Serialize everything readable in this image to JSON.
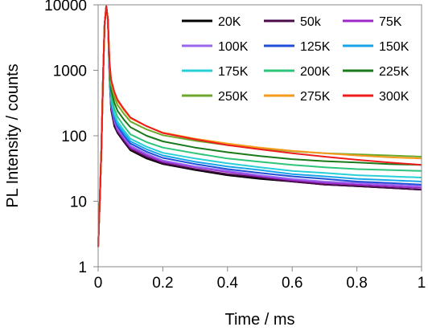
{
  "chart_data": {
    "type": "line",
    "title": "",
    "xlabel": "Time / ms",
    "ylabel": "PL Intensity / counts",
    "xlim": [
      0,
      1
    ],
    "ylim": [
      1,
      10000
    ],
    "yscale": "log",
    "x_ticks": [
      0,
      0.2,
      0.4,
      0.6,
      0.8,
      1
    ],
    "x_tick_labels": [
      "0",
      "0.2",
      "0.4",
      "0.6",
      "0.8",
      "1"
    ],
    "y_ticks": [
      1,
      10,
      100,
      1000,
      10000
    ],
    "y_tick_labels": [
      "1",
      "10",
      "100",
      "1000",
      "10000"
    ],
    "grid": false,
    "legend_placement": "top-right",
    "x": [
      0,
      0.005,
      0.01,
      0.015,
      0.02,
      0.025,
      0.03,
      0.035,
      0.04,
      0.05,
      0.06,
      0.08,
      0.1,
      0.15,
      0.2,
      0.3,
      0.4,
      0.5,
      0.6,
      0.7,
      0.8,
      0.9,
      1.0
    ],
    "series": [
      {
        "name": "20K",
        "color": "#000000",
        "values": [
          2,
          10,
          60,
          700,
          5000,
          9500,
          6000,
          800,
          250,
          140,
          110,
          80,
          60,
          45,
          37,
          30,
          25,
          22,
          20,
          18,
          17,
          16,
          15
        ]
      },
      {
        "name": "50k",
        "color": "#4b0a4b",
        "values": [
          2,
          10,
          60,
          700,
          5000,
          9500,
          6000,
          850,
          260,
          150,
          115,
          82,
          62,
          47,
          38,
          31,
          26,
          23,
          20,
          18,
          17,
          16,
          15
        ]
      },
      {
        "name": "75K",
        "color": "#9b28c8",
        "values": [
          2,
          10,
          60,
          700,
          5000,
          9500,
          6000,
          900,
          280,
          160,
          120,
          88,
          66,
          50,
          40,
          33,
          28,
          24,
          21,
          19,
          18,
          17,
          16
        ]
      },
      {
        "name": "100K",
        "color": "#9966ee",
        "values": [
          2,
          10,
          60,
          700,
          5000,
          9500,
          6000,
          950,
          300,
          170,
          128,
          94,
          70,
          53,
          42,
          34,
          29,
          25,
          22,
          20,
          19,
          18,
          17
        ]
      },
      {
        "name": "125K",
        "color": "#1f4fd6",
        "values": [
          2,
          10,
          60,
          700,
          5000,
          9500,
          6000,
          1000,
          320,
          185,
          140,
          100,
          76,
          57,
          46,
          37,
          31,
          27,
          24,
          22,
          20,
          19,
          18
        ]
      },
      {
        "name": "150K",
        "color": "#1aa3e8",
        "values": [
          2,
          10,
          60,
          700,
          5000,
          9500,
          6000,
          1050,
          340,
          200,
          150,
          110,
          82,
          62,
          50,
          40,
          34,
          30,
          26,
          24,
          22,
          21,
          20
        ]
      },
      {
        "name": "175K",
        "color": "#27d0d6",
        "values": [
          2,
          10,
          60,
          700,
          5000,
          9500,
          6000,
          1100,
          370,
          220,
          165,
          120,
          90,
          68,
          55,
          45,
          38,
          33,
          29,
          27,
          25,
          24,
          23
        ]
      },
      {
        "name": "200K",
        "color": "#2ec47a",
        "values": [
          2,
          10,
          60,
          700,
          5000,
          9500,
          6000,
          1150,
          420,
          260,
          195,
          140,
          105,
          80,
          66,
          54,
          45,
          40,
          36,
          33,
          31,
          30,
          29
        ]
      },
      {
        "name": "225K",
        "color": "#1a7a1a",
        "values": [
          2,
          10,
          60,
          700,
          5000,
          9500,
          6000,
          1200,
          500,
          320,
          240,
          175,
          135,
          100,
          82,
          66,
          56,
          49,
          44,
          41,
          39,
          37,
          36
        ]
      },
      {
        "name": "250K",
        "color": "#6ea82a",
        "values": [
          2,
          10,
          60,
          700,
          5000,
          9500,
          6000,
          1250,
          600,
          390,
          295,
          215,
          165,
          125,
          102,
          84,
          72,
          64,
          58,
          54,
          52,
          50,
          48
        ]
      },
      {
        "name": "275K",
        "color": "#f59a1c",
        "values": [
          2,
          10,
          60,
          700,
          5000,
          9500,
          6000,
          1300,
          680,
          450,
          340,
          245,
          185,
          140,
          112,
          90,
          76,
          66,
          59,
          54,
          50,
          47,
          45
        ]
      },
      {
        "name": "300K",
        "color": "#ee1c1c",
        "values": [
          2,
          10,
          60,
          700,
          5000,
          9500,
          6000,
          1350,
          720,
          470,
          355,
          255,
          190,
          140,
          110,
          88,
          72,
          62,
          54,
          48,
          43,
          39,
          36
        ]
      }
    ]
  }
}
